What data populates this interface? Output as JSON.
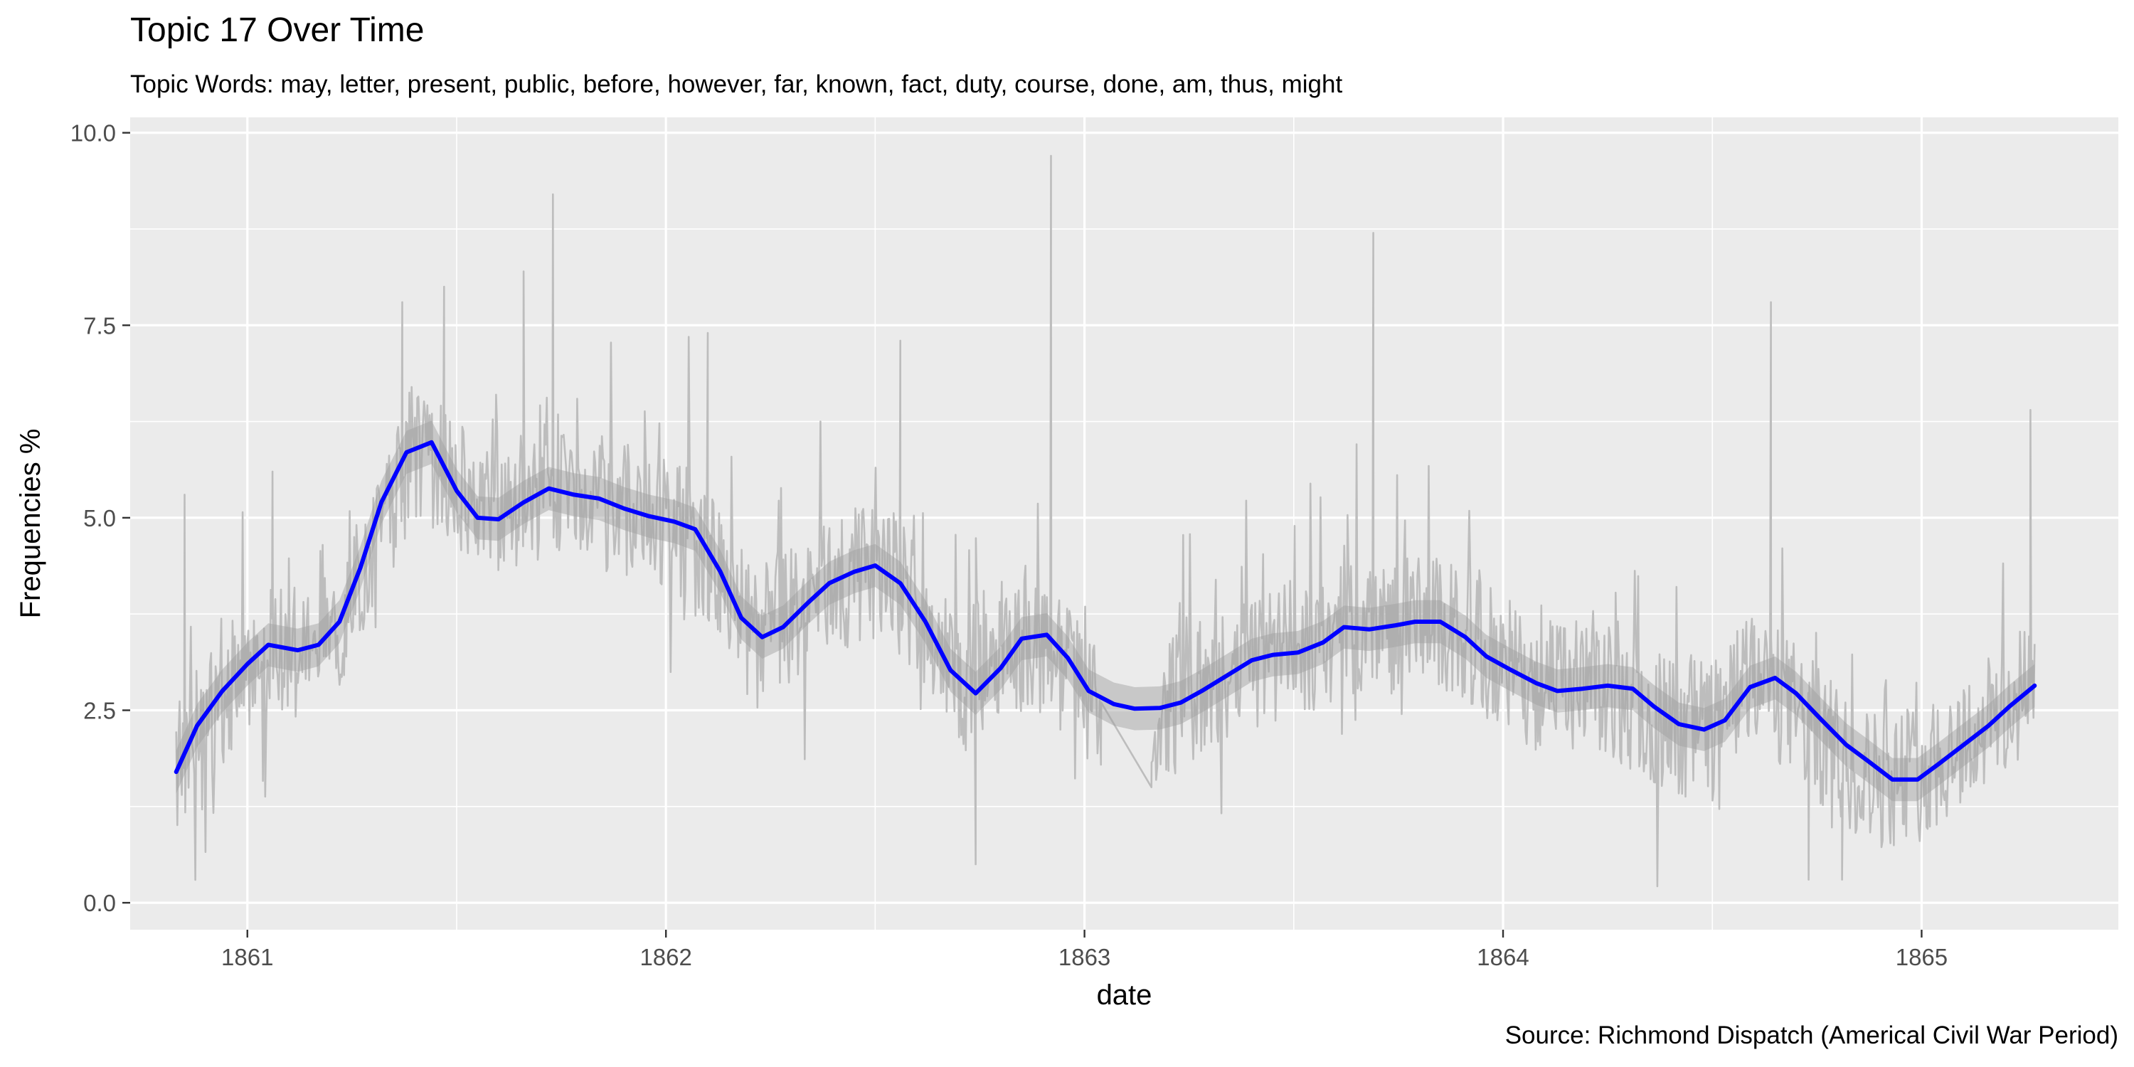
{
  "chart_data": {
    "type": "line",
    "title": "Topic 17 Over Time",
    "subtitle": "Topic Words: may, letter, present, public, before, however, far, known, fact, duty, course, done, am, thus, might",
    "xlabel": "date",
    "ylabel": "Frequencies %",
    "caption": "Source: Richmond Dispatch (Americal Civil War Period)",
    "xlim": [
      1860.72,
      1865.47
    ],
    "ylim": [
      -0.35,
      10.2
    ],
    "x_ticks": [
      1861,
      1862,
      1863,
      1864,
      1865
    ],
    "x_tick_labels": [
      "1861",
      "1862",
      "1863",
      "1864",
      "1865"
    ],
    "y_ticks": [
      0,
      2.5,
      5,
      7.5,
      10
    ],
    "y_tick_labels": [
      "0.0",
      "2.5",
      "5.0",
      "7.5",
      "10.0"
    ],
    "grid": true,
    "colors": {
      "panel_bg": "#ebebeb",
      "grid_major": "#ffffff",
      "raw_line": "#bdbdbd",
      "ribbon": "#9e9e9e",
      "smooth_line": "#0000ff",
      "text": "#000000",
      "tick_text": "#4d4d4d"
    },
    "series": [
      {
        "kind": "raw",
        "x_start": 1860.83,
        "x_end": 1865.27,
        "gap": [
          1863.04,
          1863.16
        ],
        "anchors_x": [
          1860.83,
          1860.9,
          1861.0,
          1861.1,
          1861.2,
          1861.3,
          1861.4,
          1861.5,
          1861.6,
          1861.7,
          1861.8,
          1861.9,
          1862.0,
          1862.1,
          1862.2,
          1862.3,
          1862.4,
          1862.5,
          1862.6,
          1862.7,
          1862.8,
          1862.9,
          1863.0,
          1863.04,
          1863.16,
          1863.2,
          1863.3,
          1863.4,
          1863.5,
          1863.6,
          1863.7,
          1863.8,
          1863.9,
          1864.0,
          1864.1,
          1864.2,
          1864.3,
          1864.4,
          1864.5,
          1864.6,
          1864.7,
          1864.8,
          1864.9,
          1865.0,
          1865.1,
          1865.2,
          1865.27
        ],
        "anchors_y": [
          1.8,
          2.4,
          3.0,
          3.3,
          3.4,
          4.6,
          5.9,
          5.5,
          5.0,
          5.4,
          5.3,
          5.1,
          4.9,
          4.5,
          3.5,
          3.7,
          4.2,
          4.3,
          3.9,
          2.8,
          3.4,
          3.3,
          2.8,
          2.6,
          1.5,
          2.6,
          2.8,
          3.1,
          3.3,
          3.5,
          3.6,
          3.6,
          3.5,
          3.1,
          2.8,
          2.8,
          2.6,
          2.3,
          2.3,
          2.9,
          2.5,
          1.9,
          1.6,
          1.7,
          2.1,
          2.5,
          2.8
        ],
        "noise_amplitude": 0.9,
        "spikes": [
          {
            "x": 1860.85,
            "y": 5.3
          },
          {
            "x": 1861.06,
            "y": 5.6
          },
          {
            "x": 1861.37,
            "y": 7.8
          },
          {
            "x": 1861.47,
            "y": 8.0
          },
          {
            "x": 1861.73,
            "y": 9.2
          },
          {
            "x": 1861.66,
            "y": 8.2
          },
          {
            "x": 1862.1,
            "y": 7.4
          },
          {
            "x": 1862.56,
            "y": 7.3
          },
          {
            "x": 1862.92,
            "y": 9.7
          },
          {
            "x": 1863.69,
            "y": 8.7
          },
          {
            "x": 1864.64,
            "y": 7.8
          },
          {
            "x": 1865.26,
            "y": 6.4
          },
          {
            "x": 1862.74,
            "y": 0.5
          },
          {
            "x": 1864.73,
            "y": 0.3
          },
          {
            "x": 1864.81,
            "y": 0.3
          }
        ]
      },
      {
        "kind": "smooth",
        "ribbon_halfwidth": 0.28,
        "x": [
          1860.83,
          1860.88,
          1860.94,
          1861.0,
          1861.05,
          1861.12,
          1861.17,
          1861.22,
          1861.27,
          1861.32,
          1861.38,
          1861.44,
          1861.5,
          1861.55,
          1861.6,
          1861.66,
          1861.72,
          1861.78,
          1861.84,
          1861.9,
          1861.96,
          1862.02,
          1862.07,
          1862.13,
          1862.18,
          1862.23,
          1862.28,
          1862.34,
          1862.39,
          1862.45,
          1862.5,
          1862.56,
          1862.62,
          1862.68,
          1862.74,
          1862.8,
          1862.85,
          1862.91,
          1862.96,
          1863.01,
          1863.07,
          1863.12,
          1863.18,
          1863.23,
          1863.28,
          1863.34,
          1863.4,
          1863.45,
          1863.51,
          1863.57,
          1863.62,
          1863.68,
          1863.74,
          1863.79,
          1863.85,
          1863.91,
          1863.96,
          1864.02,
          1864.08,
          1864.13,
          1864.19,
          1864.25,
          1864.31,
          1864.36,
          1864.42,
          1864.48,
          1864.53,
          1864.59,
          1864.65,
          1864.7,
          1864.76,
          1864.82,
          1864.87,
          1864.93,
          1864.99,
          1865.04,
          1865.1,
          1865.16,
          1865.21,
          1865.27
        ],
        "y": [
          1.7,
          2.3,
          2.75,
          3.1,
          3.35,
          3.28,
          3.35,
          3.65,
          4.35,
          5.2,
          5.85,
          5.98,
          5.35,
          5.0,
          4.98,
          5.2,
          5.38,
          5.3,
          5.25,
          5.12,
          5.02,
          4.95,
          4.85,
          4.3,
          3.7,
          3.45,
          3.58,
          3.9,
          4.15,
          4.3,
          4.38,
          4.15,
          3.65,
          3.02,
          2.72,
          3.05,
          3.43,
          3.48,
          3.18,
          2.75,
          2.58,
          2.52,
          2.53,
          2.6,
          2.75,
          2.95,
          3.15,
          3.22,
          3.25,
          3.38,
          3.58,
          3.55,
          3.6,
          3.65,
          3.65,
          3.45,
          3.2,
          3.02,
          2.85,
          2.75,
          2.78,
          2.82,
          2.78,
          2.55,
          2.32,
          2.25,
          2.37,
          2.8,
          2.92,
          2.72,
          2.38,
          2.05,
          1.85,
          1.6,
          1.6,
          1.8,
          2.05,
          2.3,
          2.55,
          2.82
        ]
      }
    ]
  }
}
